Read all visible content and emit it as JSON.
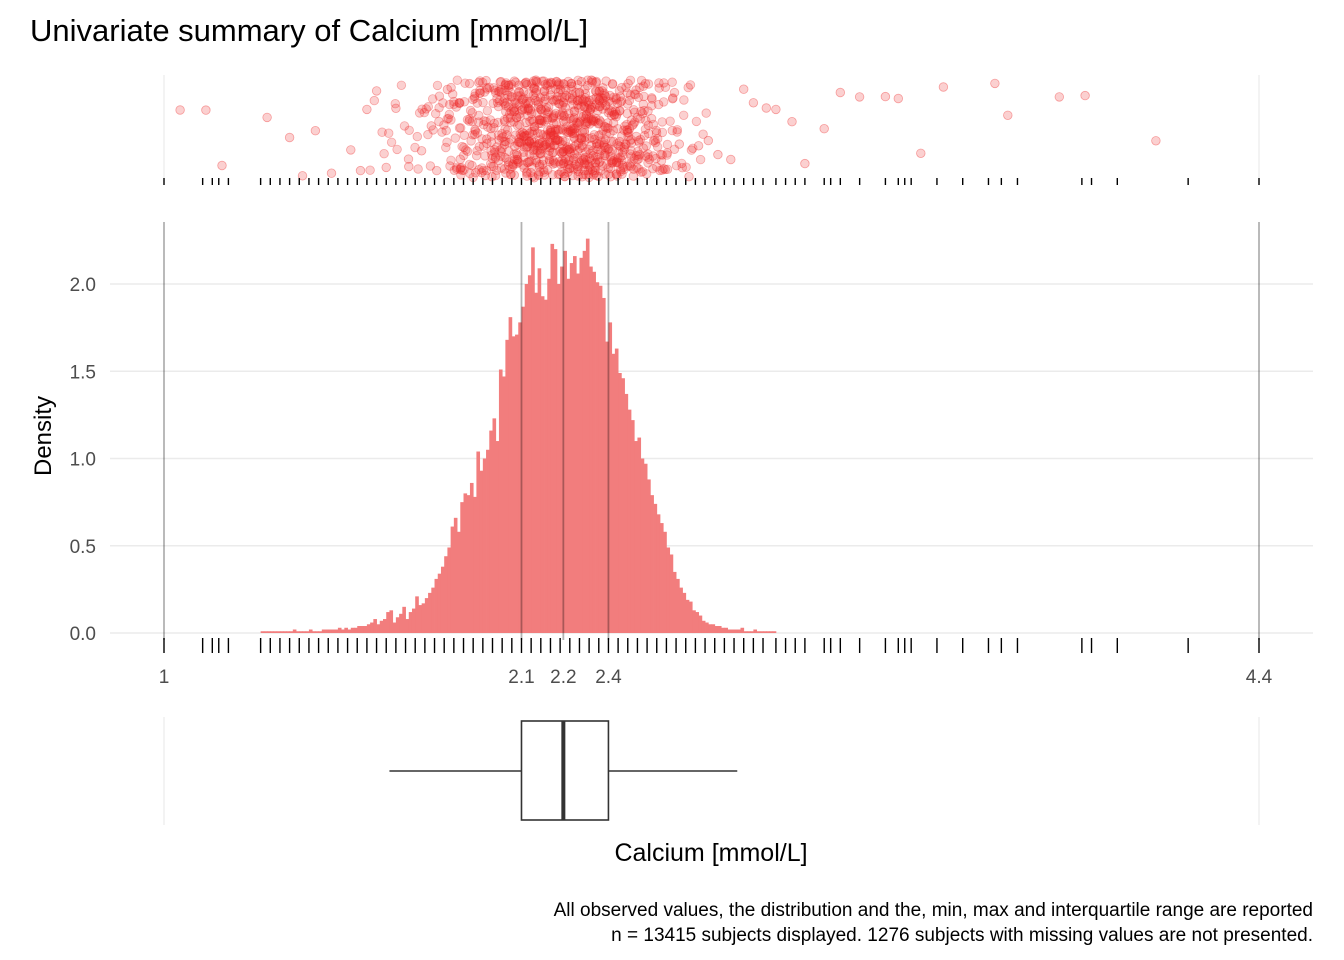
{
  "chart_data": {
    "type": "histogram",
    "title": "Univariate summary of Calcium [mmol/L]",
    "xlabel": "Calcium [mmol/L]",
    "ylabel": "Density",
    "x_ticks": [
      "1",
      "2.1",
      "2.2",
      "2.4",
      "4.4"
    ],
    "x_tick_values": [
      1.0,
      2.11,
      2.24,
      2.38,
      4.4
    ],
    "xlim": [
      0.92,
      4.48
    ],
    "ylim": [
      0,
      2.3
    ],
    "y_ticks": [
      {
        "value": 0.0,
        "label": "0.0"
      },
      {
        "value": 0.5,
        "label": "0.5"
      },
      {
        "value": 1.0,
        "label": "1.0"
      },
      {
        "value": 1.5,
        "label": "1.5"
      },
      {
        "value": 2.0,
        "label": "2.0"
      }
    ],
    "grid": true,
    "bar_color": "#f27d7d",
    "point_color": "#ee2b2b",
    "summary": {
      "min": 1.0,
      "q1": 2.11,
      "median": 2.24,
      "q3": 2.38,
      "max": 4.4,
      "whisker_low": 1.7,
      "whisker_high": 2.78
    },
    "histogram": {
      "bin_start": 1.3,
      "bin_width": 0.01,
      "density": [
        0.01,
        0.01,
        0.01,
        0.01,
        0.01,
        0.01,
        0.01,
        0.01,
        0.01,
        0.01,
        0.02,
        0.01,
        0.01,
        0.01,
        0.01,
        0.02,
        0.01,
        0.01,
        0.01,
        0.02,
        0.02,
        0.02,
        0.02,
        0.02,
        0.03,
        0.02,
        0.03,
        0.02,
        0.03,
        0.03,
        0.04,
        0.04,
        0.04,
        0.05,
        0.06,
        0.08,
        0.05,
        0.07,
        0.08,
        0.12,
        0.13,
        0.06,
        0.09,
        0.11,
        0.15,
        0.08,
        0.12,
        0.14,
        0.21,
        0.16,
        0.17,
        0.2,
        0.23,
        0.26,
        0.31,
        0.34,
        0.38,
        0.44,
        0.49,
        0.61,
        0.66,
        0.58,
        0.75,
        0.8,
        0.79,
        0.86,
        0.78,
        1.04,
        0.93,
        1.0,
        1.05,
        1.16,
        1.23,
        1.1,
        1.51,
        1.47,
        1.68,
        1.81,
        1.7,
        1.71,
        1.78,
        1.87,
        2.0,
        2.05,
        2.21,
        1.95,
        2.09,
        1.93,
        1.91,
        2.03,
        2.23,
        2.2,
        2.0,
        2.1,
        2.19,
        2.03,
        2.12,
        2.16,
        2.06,
        2.15,
        2.19,
        2.26,
        2.1,
        2.07,
        2.01,
        1.99,
        1.92,
        1.67,
        1.78,
        1.6,
        1.63,
        1.49,
        1.46,
        1.37,
        1.28,
        1.22,
        1.1,
        1.12,
        1.0,
        0.97,
        0.88,
        0.79,
        0.74,
        0.68,
        0.63,
        0.58,
        0.49,
        0.45,
        0.35,
        0.31,
        0.26,
        0.23,
        0.19,
        0.18,
        0.13,
        0.12,
        0.1,
        0.07,
        0.06,
        0.05,
        0.05,
        0.04,
        0.04,
        0.03,
        0.03,
        0.02,
        0.02,
        0.02,
        0.02,
        0.03,
        0.01,
        0.01,
        0.01,
        0.02,
        0.01,
        0.01,
        0.01,
        0.01,
        0.01,
        0.01
      ]
    },
    "observed_values_sample": [
      1.05,
      1.13,
      1.18,
      1.32,
      1.39,
      1.43,
      1.47,
      1.52,
      1.58,
      1.61,
      1.63,
      1.66,
      1.69,
      1.72,
      1.76,
      1.8,
      1.83,
      1.88,
      1.92,
      2.6,
      2.63,
      2.66,
      2.69,
      2.72,
      2.76,
      2.8,
      2.83,
      2.87,
      2.9,
      2.95,
      2.99,
      3.05,
      3.1,
      3.16,
      3.24,
      3.28,
      3.35,
      3.42,
      3.58,
      3.62,
      3.78,
      3.86,
      4.08
    ],
    "rug_values": [
      1.0,
      1.12,
      1.15,
      1.17,
      1.2,
      1.3,
      1.33,
      1.36,
      1.39,
      1.42,
      1.45,
      1.48,
      1.51,
      1.54,
      1.57,
      1.6,
      1.63,
      1.66,
      1.69,
      1.72,
      1.75,
      1.78,
      1.81,
      1.84,
      1.87,
      1.9,
      1.93,
      1.96,
      1.99,
      2.02,
      2.05,
      2.08,
      2.11,
      2.14,
      2.17,
      2.2,
      2.23,
      2.26,
      2.29,
      2.32,
      2.35,
      2.38,
      2.41,
      2.44,
      2.47,
      2.5,
      2.53,
      2.56,
      2.59,
      2.62,
      2.65,
      2.68,
      2.71,
      2.74,
      2.77,
      2.8,
      2.83,
      2.86,
      2.9,
      2.93,
      2.96,
      2.99,
      3.05,
      3.07,
      3.1,
      3.16,
      3.24,
      3.28,
      3.3,
      3.32,
      3.4,
      3.48,
      3.56,
      3.6,
      3.65,
      3.85,
      3.88,
      3.96,
      4.18,
      4.4
    ],
    "caption_line1": "All observed values, the distribution and the, min, max and interquartile range are reported",
    "caption_line2": "n = 13415 subjects displayed. 1276 subjects with missing values are not presented."
  }
}
